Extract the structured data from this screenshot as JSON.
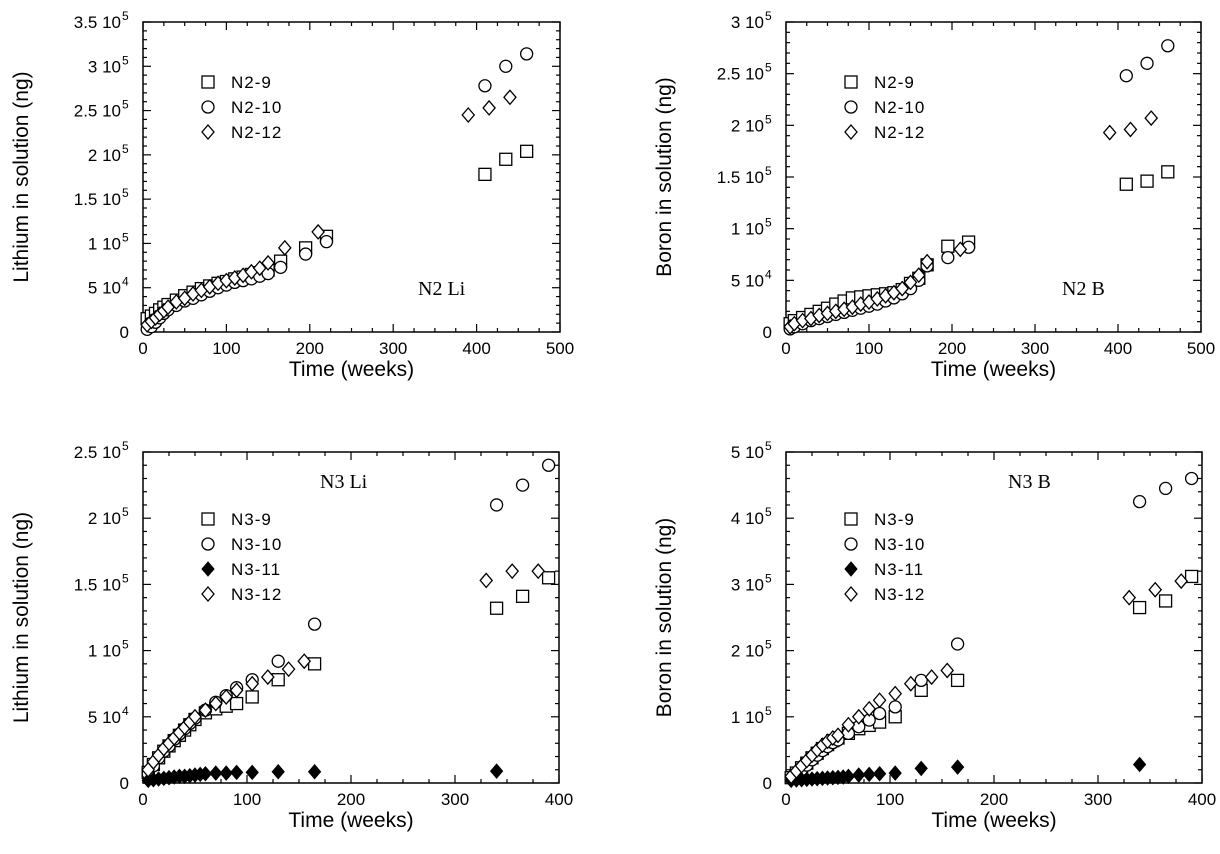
{
  "chart_data": [
    {
      "type": "scatter",
      "annotation": "N2 Li",
      "xlabel": "Time (weeks)",
      "ylabel": "Lithium in solution (ng)",
      "xlim": [
        0,
        500
      ],
      "ylim": [
        0,
        350000
      ],
      "xticks": [
        0,
        100,
        200,
        300,
        400,
        500
      ],
      "xtick_labels": [
        "0",
        "100",
        "200",
        "300",
        "400",
        "500"
      ],
      "yticks": [
        0,
        50000,
        100000,
        150000,
        200000,
        250000,
        300000,
        350000
      ],
      "ytick_labels": [
        "0",
        "5 10",
        "1 10",
        "1.5 10",
        "2 10",
        "2.5 10",
        "3 10",
        "3.5 10"
      ],
      "ytick_exponents": [
        "",
        "4",
        "5",
        "5",
        "5",
        "5",
        "5",
        "5"
      ],
      "legend_position": "top-left",
      "series": [
        {
          "name": "N2-9",
          "marker": "square-open",
          "x": [
            5,
            10,
            15,
            20,
            25,
            30,
            40,
            50,
            60,
            70,
            80,
            90,
            100,
            110,
            120,
            130,
            140,
            150,
            165,
            195,
            220,
            410,
            435,
            460
          ],
          "y": [
            15000,
            18000,
            21000,
            25000,
            28000,
            31000,
            36000,
            41000,
            45000,
            49000,
            52000,
            55000,
            57000,
            60000,
            62000,
            65000,
            67000,
            70000,
            80000,
            95000,
            108000,
            178000,
            195000,
            204000
          ]
        },
        {
          "name": "N2-10",
          "marker": "circle-open",
          "x": [
            5,
            10,
            15,
            20,
            25,
            30,
            40,
            50,
            60,
            70,
            80,
            90,
            100,
            110,
            120,
            130,
            140,
            150,
            165,
            195,
            220,
            410,
            435,
            460
          ],
          "y": [
            3000,
            6000,
            11000,
            16000,
            21000,
            25000,
            30000,
            35000,
            38000,
            42000,
            46000,
            50000,
            53000,
            56000,
            58000,
            60000,
            63000,
            66000,
            73000,
            88000,
            102000,
            278000,
            300000,
            314000
          ]
        },
        {
          "name": "N2-12",
          "marker": "diamond-open",
          "x": [
            5,
            10,
            15,
            20,
            25,
            30,
            40,
            50,
            60,
            70,
            80,
            90,
            100,
            110,
            120,
            130,
            140,
            150,
            170,
            210,
            390,
            415,
            440
          ],
          "y": [
            8000,
            12000,
            16000,
            20000,
            24000,
            28000,
            34000,
            38000,
            43000,
            47000,
            51000,
            55000,
            58000,
            61000,
            64000,
            68000,
            72000,
            78000,
            95000,
            113000,
            245000,
            253000,
            265000
          ]
        }
      ]
    },
    {
      "type": "scatter",
      "annotation": "N2 B",
      "xlabel": "Time (weeks)",
      "ylabel": "Boron in solution (ng)",
      "xlim": [
        0,
        500
      ],
      "ylim": [
        0,
        300000
      ],
      "xticks": [
        0,
        100,
        200,
        300,
        400,
        500
      ],
      "xtick_labels": [
        "0",
        "100",
        "200",
        "300",
        "400",
        "500"
      ],
      "yticks": [
        0,
        50000,
        100000,
        150000,
        200000,
        250000,
        300000
      ],
      "ytick_labels": [
        "0",
        "5 10",
        "1 10",
        "1.5 10",
        "2 10",
        "2.5 10",
        "3 10"
      ],
      "ytick_exponents": [
        "",
        "4",
        "5",
        "5",
        "5",
        "5",
        "5"
      ],
      "legend_position": "top-left",
      "series": [
        {
          "name": "N2-9",
          "marker": "square-open",
          "x": [
            5,
            10,
            20,
            30,
            40,
            50,
            60,
            70,
            80,
            90,
            100,
            110,
            120,
            130,
            140,
            150,
            160,
            170,
            195,
            220,
            410,
            435,
            460
          ],
          "y": [
            8000,
            11000,
            14000,
            17000,
            20000,
            23000,
            27000,
            30000,
            33000,
            34000,
            35000,
            36000,
            37000,
            38000,
            41000,
            47000,
            52000,
            65000,
            83000,
            87000,
            143000,
            146000,
            155000
          ]
        },
        {
          "name": "N2-10",
          "marker": "circle-open",
          "x": [
            5,
            10,
            20,
            30,
            40,
            50,
            60,
            70,
            80,
            90,
            100,
            110,
            120,
            130,
            140,
            150,
            160,
            170,
            195,
            220,
            410,
            435,
            460
          ],
          "y": [
            3000,
            5000,
            8000,
            11000,
            13000,
            15000,
            17000,
            19000,
            21000,
            23000,
            25000,
            27000,
            30000,
            33000,
            37000,
            42000,
            50000,
            64000,
            72000,
            82000,
            248000,
            260000,
            277000
          ]
        },
        {
          "name": "N2-12",
          "marker": "diamond-open",
          "x": [
            5,
            10,
            20,
            30,
            40,
            50,
            60,
            70,
            80,
            90,
            100,
            110,
            120,
            130,
            140,
            150,
            160,
            170,
            210,
            390,
            415,
            440
          ],
          "y": [
            5000,
            8000,
            11000,
            13000,
            16000,
            18000,
            20000,
            22000,
            24000,
            27000,
            29000,
            32000,
            35000,
            38000,
            42000,
            48000,
            55000,
            68000,
            80000,
            193000,
            196000,
            207000
          ]
        }
      ]
    },
    {
      "type": "scatter",
      "annotation": "N3 Li",
      "xlabel": "Time (weeks)",
      "ylabel": "Lithium in solution (ng)",
      "xlim": [
        0,
        400
      ],
      "ylim": [
        0,
        250000
      ],
      "xticks": [
        0,
        100,
        200,
        300,
        400
      ],
      "xtick_labels": [
        "0",
        "100",
        "200",
        "300",
        "400"
      ],
      "yticks": [
        0,
        50000,
        100000,
        150000,
        200000,
        250000
      ],
      "ytick_labels": [
        "0",
        "5 10",
        "1 10",
        "1.5 10",
        "2 10",
        "2.5 10"
      ],
      "ytick_exponents": [
        "",
        "4",
        "5",
        "5",
        "5",
        "5"
      ],
      "legend_position": "top-left",
      "series": [
        {
          "name": "N3-9",
          "marker": "square-open",
          "x": [
            5,
            10,
            15,
            20,
            25,
            30,
            35,
            40,
            45,
            50,
            60,
            70,
            80,
            90,
            105,
            130,
            165,
            340,
            365,
            390
          ],
          "y": [
            8000,
            14000,
            19000,
            24000,
            28000,
            32000,
            36000,
            40000,
            44000,
            48000,
            53000,
            56000,
            58000,
            60000,
            65000,
            78000,
            90000,
            132000,
            141000,
            155000
          ]
        },
        {
          "name": "N3-10",
          "marker": "circle-open",
          "x": [
            5,
            10,
            15,
            20,
            25,
            30,
            35,
            40,
            45,
            50,
            60,
            70,
            80,
            90,
            105,
            130,
            165,
            340,
            365,
            390
          ],
          "y": [
            7000,
            13000,
            19000,
            24000,
            28000,
            33000,
            37000,
            41000,
            45000,
            49000,
            55000,
            61000,
            66000,
            72000,
            78000,
            92000,
            120000,
            210000,
            225000,
            240000
          ]
        },
        {
          "name": "N3-11",
          "marker": "diamond-filled",
          "x": [
            5,
            10,
            15,
            20,
            25,
            30,
            35,
            40,
            45,
            50,
            55,
            60,
            70,
            80,
            90,
            105,
            130,
            165,
            340
          ],
          "y": [
            2000,
            2500,
            3000,
            3500,
            4000,
            4500,
            5000,
            5000,
            5500,
            6000,
            6500,
            7000,
            7500,
            7500,
            8000,
            8000,
            8500,
            8500,
            9000
          ]
        },
        {
          "name": "N3-12",
          "marker": "diamond-open",
          "x": [
            5,
            10,
            15,
            20,
            25,
            30,
            35,
            40,
            45,
            50,
            60,
            70,
            80,
            90,
            105,
            120,
            140,
            155,
            330,
            355,
            380
          ],
          "y": [
            10000,
            16000,
            21000,
            26000,
            30000,
            34000,
            38000,
            42000,
            46000,
            50000,
            55000,
            60000,
            65000,
            70000,
            75000,
            80000,
            86000,
            92000,
            153000,
            160000,
            160000
          ]
        }
      ]
    },
    {
      "type": "scatter",
      "annotation": "N3 B",
      "xlabel": "Time (weeks)",
      "ylabel": "Boron in solution (ng)",
      "xlim": [
        0,
        400
      ],
      "ylim": [
        0,
        500000
      ],
      "xticks": [
        0,
        100,
        200,
        300,
        400
      ],
      "xtick_labels": [
        "0",
        "100",
        "200",
        "300",
        "400"
      ],
      "yticks": [
        0,
        100000,
        200000,
        300000,
        400000,
        500000
      ],
      "ytick_labels": [
        "0",
        "1 10",
        "2 10",
        "3 10",
        "4 10",
        "5 10"
      ],
      "ytick_exponents": [
        "",
        "5",
        "5",
        "5",
        "5",
        "5"
      ],
      "legend_position": "top-left",
      "series": [
        {
          "name": "N3-9",
          "marker": "square-open",
          "x": [
            5,
            10,
            15,
            20,
            25,
            30,
            35,
            40,
            45,
            50,
            60,
            70,
            80,
            90,
            105,
            130,
            165,
            340,
            365,
            390
          ],
          "y": [
            8000,
            15000,
            23000,
            30000,
            38000,
            45000,
            52000,
            58000,
            64000,
            68000,
            75000,
            82000,
            87000,
            92000,
            100000,
            140000,
            155000,
            265000,
            275000,
            312000
          ]
        },
        {
          "name": "N3-10",
          "marker": "circle-open",
          "x": [
            5,
            10,
            15,
            20,
            25,
            30,
            35,
            40,
            45,
            50,
            60,
            70,
            80,
            90,
            105,
            130,
            165,
            340,
            365,
            390
          ],
          "y": [
            7000,
            13000,
            20000,
            27000,
            35000,
            42000,
            49000,
            55000,
            61000,
            65000,
            75000,
            85000,
            95000,
            105000,
            115000,
            155000,
            210000,
            425000,
            445000,
            460000
          ]
        },
        {
          "name": "N3-11",
          "marker": "diamond-filled",
          "x": [
            5,
            10,
            15,
            20,
            25,
            30,
            35,
            40,
            45,
            50,
            55,
            60,
            70,
            80,
            90,
            105,
            130,
            165,
            340
          ],
          "y": [
            4000,
            4500,
            5000,
            5500,
            6000,
            6500,
            7000,
            7500,
            8000,
            8500,
            9000,
            10000,
            12000,
            13000,
            14000,
            15000,
            22000,
            24000,
            28000
          ]
        },
        {
          "name": "N3-12",
          "marker": "diamond-open",
          "x": [
            5,
            10,
            15,
            20,
            25,
            30,
            35,
            40,
            45,
            50,
            60,
            70,
            80,
            90,
            105,
            120,
            140,
            155,
            330,
            355,
            380
          ],
          "y": [
            10000,
            18000,
            26000,
            34000,
            42000,
            50000,
            57000,
            63000,
            68000,
            72000,
            88000,
            100000,
            112000,
            125000,
            135000,
            150000,
            160000,
            170000,
            280000,
            292000,
            305000
          ]
        }
      ]
    }
  ]
}
